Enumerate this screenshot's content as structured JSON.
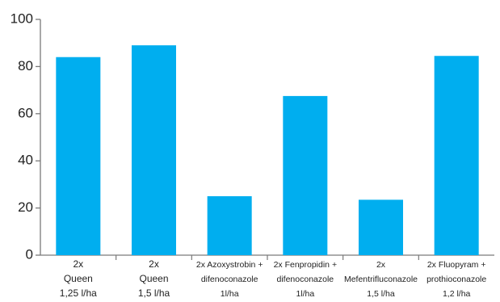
{
  "chart_data": {
    "type": "bar",
    "categories": [
      [
        "2x",
        "Queen",
        "1,25 l/ha"
      ],
      [
        "2x",
        "Queen",
        "1,5 l/ha"
      ],
      [
        "2x Azoxystrobin +",
        "difenoconazole",
        "1l/ha"
      ],
      [
        "2x Fenpropidin +",
        "difenoconazole",
        "1l/ha"
      ],
      [
        "2x",
        "Mefentrifluconazole",
        "1,5 l/ha"
      ],
      [
        "2x Fluopyram +",
        "prothioconazole",
        "1,2 l/ha"
      ]
    ],
    "values": [
      84,
      89,
      25,
      67.5,
      23.5,
      84.5
    ],
    "ylim": [
      0,
      100
    ],
    "yticks": [
      0,
      20,
      40,
      60,
      80,
      100
    ],
    "grid": false,
    "legend": "none",
    "colors": {
      "bar": "#00AEEF",
      "axis": "#7a7a7a",
      "text": "#222222"
    }
  }
}
